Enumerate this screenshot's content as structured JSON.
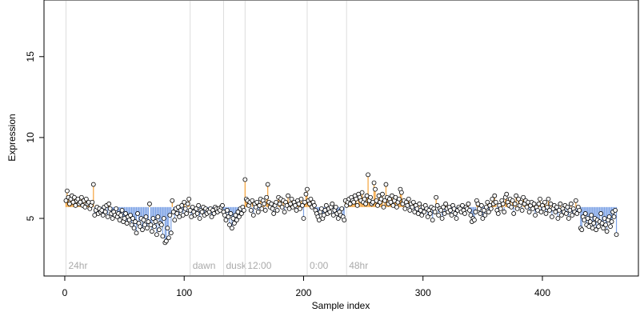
{
  "chart_data": {
    "type": "index-scatter",
    "x_label": "Sample index",
    "y_label": "Expression",
    "xlim": [
      -17.4,
      480.4
    ],
    "ylim": [
      1.44,
      18.5
    ],
    "xticks": [
      0,
      100,
      200,
      300,
      400
    ],
    "yticks": [
      5,
      10,
      15
    ],
    "reference": 5.7,
    "above_color": "#f5a33a",
    "below_color": "#7fa4e6",
    "point_fill": "#ffffff",
    "point_stroke": "#000000",
    "marker_color": "#dddddd",
    "markers": [
      {
        "x": 1,
        "label": "24hr"
      },
      {
        "x": 105,
        "label": "dawn"
      },
      {
        "x": 133,
        "label": "dusk"
      },
      {
        "x": 151,
        "label": "12:00"
      },
      {
        "x": 203,
        "label": "0:00"
      },
      {
        "x": 236,
        "label": "48hr"
      }
    ],
    "x": [
      1,
      2,
      3,
      4,
      5,
      6,
      7,
      8,
      9,
      10,
      11,
      12,
      13,
      14,
      15,
      16,
      17,
      18,
      19,
      20,
      21,
      22,
      23,
      24,
      25,
      26,
      27,
      28,
      29,
      30,
      31,
      32,
      33,
      34,
      35,
      36,
      37,
      38,
      39,
      40,
      41,
      42,
      43,
      44,
      45,
      46,
      47,
      48,
      49,
      50,
      51,
      52,
      53,
      54,
      55,
      56,
      57,
      58,
      59,
      60,
      61,
      62,
      63,
      64,
      65,
      66,
      67,
      68,
      69,
      70,
      71,
      72,
      73,
      74,
      75,
      76,
      77,
      78,
      79,
      80,
      81,
      82,
      83,
      84,
      85,
      86,
      87,
      88,
      89,
      90,
      91,
      92,
      93,
      94,
      95,
      96,
      97,
      98,
      99,
      100,
      101,
      102,
      103,
      104,
      105,
      106,
      107,
      108,
      109,
      110,
      111,
      112,
      113,
      114,
      115,
      116,
      117,
      118,
      119,
      120,
      121,
      122,
      123,
      124,
      125,
      126,
      127,
      128,
      129,
      130,
      131,
      132,
      133,
      134,
      135,
      136,
      137,
      138,
      139,
      140,
      141,
      142,
      143,
      144,
      145,
      146,
      147,
      148,
      149,
      150,
      151,
      152,
      153,
      154,
      155,
      156,
      157,
      158,
      159,
      160,
      161,
      162,
      163,
      164,
      165,
      166,
      167,
      168,
      169,
      170,
      171,
      172,
      173,
      174,
      175,
      176,
      177,
      178,
      179,
      180,
      181,
      182,
      183,
      184,
      185,
      186,
      187,
      188,
      189,
      190,
      191,
      192,
      193,
      194,
      195,
      196,
      197,
      198,
      199,
      200,
      201,
      202,
      203,
      204,
      205,
      206,
      207,
      208,
      209,
      210,
      211,
      212,
      213,
      214,
      215,
      216,
      217,
      218,
      219,
      220,
      221,
      222,
      223,
      224,
      225,
      226,
      227,
      228,
      229,
      230,
      231,
      232,
      233,
      234,
      235,
      236,
      237,
      238,
      239,
      240,
      241,
      242,
      243,
      244,
      245,
      246,
      247,
      248,
      249,
      250,
      251,
      252,
      253,
      254,
      255,
      256,
      257,
      258,
      259,
      260,
      261,
      262,
      263,
      264,
      265,
      266,
      267,
      268,
      269,
      270,
      271,
      272,
      273,
      274,
      275,
      276,
      277,
      278,
      279,
      280,
      281,
      282,
      283,
      284,
      285,
      286,
      287,
      288,
      289,
      290,
      291,
      292,
      293,
      294,
      295,
      296,
      297,
      298,
      299,
      300,
      301,
      302,
      303,
      304,
      305,
      306,
      307,
      308,
      309,
      310,
      311,
      312,
      313,
      314,
      315,
      316,
      317,
      318,
      319,
      320,
      321,
      322,
      323,
      324,
      325,
      326,
      327,
      328,
      329,
      330,
      331,
      332,
      333,
      334,
      335,
      336,
      337,
      338,
      339,
      340,
      341,
      342,
      343,
      344,
      345,
      346,
      347,
      348,
      349,
      350,
      351,
      352,
      353,
      354,
      355,
      356,
      357,
      358,
      359,
      360,
      361,
      362,
      363,
      364,
      365,
      366,
      367,
      368,
      369,
      370,
      371,
      372,
      373,
      374,
      375,
      376,
      377,
      378,
      379,
      380,
      381,
      382,
      383,
      384,
      385,
      386,
      387,
      388,
      389,
      390,
      391,
      392,
      393,
      394,
      395,
      396,
      397,
      398,
      399,
      400,
      401,
      402,
      403,
      404,
      405,
      406,
      407,
      408,
      409,
      410,
      411,
      412,
      413,
      414,
      415,
      416,
      417,
      418,
      419,
      420,
      421,
      422,
      423,
      424,
      425,
      426,
      427,
      428,
      429,
      430,
      431,
      432,
      433,
      434,
      435,
      436,
      437,
      438,
      439,
      440,
      441,
      442,
      443,
      444,
      445,
      446,
      447,
      448,
      449,
      450,
      451,
      452,
      453,
      454,
      455,
      456,
      457,
      458,
      459,
      460,
      461,
      462
    ],
    "values": [
      6.1,
      6.7,
      6.3,
      5.9,
      6.2,
      6.4,
      6.0,
      6.3,
      5.8,
      6.1,
      6.2,
      5.9,
      6.0,
      6.3,
      5.8,
      6.1,
      5.7,
      6.2,
      5.9,
      6.0,
      5.6,
      5.8,
      6.0,
      7.1,
      5.2,
      5.5,
      5.7,
      5.3,
      5.6,
      5.4,
      5.5,
      5.2,
      5.7,
      5.4,
      5.8,
      5.1,
      5.9,
      5.6,
      5.3,
      5.0,
      5.4,
      5.2,
      5.6,
      5.1,
      5.3,
      4.9,
      5.2,
      5.5,
      4.8,
      5.0,
      5.3,
      4.7,
      5.1,
      4.9,
      5.2,
      4.6,
      5.0,
      4.4,
      4.8,
      4.1,
      5.3,
      4.7,
      4.5,
      5.0,
      4.3,
      4.9,
      4.6,
      5.1,
      4.4,
      4.8,
      5.9,
      4.6,
      4.2,
      5.0,
      4.5,
      4.8,
      4.0,
      5.1,
      4.3,
      4.7,
      4.6,
      3.9,
      5.0,
      3.5,
      3.6,
      4.4,
      3.8,
      5.2,
      4.1,
      6.1,
      5.4,
      4.9,
      5.6,
      5.3,
      5.7,
      5.1,
      5.5,
      5.8,
      5.2,
      6.0,
      5.6,
      5.3,
      5.9,
      6.2,
      5.5,
      5.1,
      5.7,
      5.4,
      5.2,
      5.6,
      5.3,
      5.8,
      5.0,
      5.5,
      5.4,
      5.7,
      5.2,
      5.6,
      5.3,
      5.5,
      5.4,
      5.6,
      5.1,
      5.5,
      5.3,
      5.7,
      5.6,
      5.4,
      5.6,
      5.5,
      5.7,
      5.8,
      5.4,
      5.2,
      4.9,
      5.5,
      5.1,
      4.6,
      5.3,
      4.4,
      5.0,
      4.7,
      5.2,
      4.9,
      5.4,
      5.1,
      5.6,
      5.3,
      5.7,
      5.5,
      7.4,
      6.2,
      6.1,
      5.8,
      6.0,
      5.5,
      6.1,
      5.2,
      5.9,
      5.7,
      6.0,
      5.4,
      5.8,
      6.2,
      5.6,
      6.1,
      5.9,
      5.5,
      6.3,
      7.1,
      6.0,
      5.7,
      5.9,
      5.6,
      5.3,
      5.8,
      6.0,
      5.5,
      6.3,
      5.9,
      6.2,
      5.7,
      6.1,
      5.4,
      6.0,
      5.8,
      6.4,
      5.6,
      5.9,
      6.2,
      5.7,
      6.0,
      5.8,
      5.5,
      6.1,
      5.9,
      5.6,
      6.2,
      5.8,
      5.0,
      6.0,
      6.5,
      6.8,
      6.1,
      5.9,
      6.2,
      5.7,
      6.0,
      5.8,
      5.5,
      5.3,
      5.1,
      4.9,
      5.4,
      5.6,
      5.0,
      5.2,
      5.5,
      5.8,
      5.3,
      5.6,
      5.4,
      5.7,
      5.9,
      5.2,
      5.5,
      5.7,
      5.3,
      5.0,
      5.4,
      5.2,
      5.6,
      5.1,
      4.9,
      6.1,
      5.8,
      6.0,
      6.2,
      5.9,
      6.3,
      6.1,
      6.0,
      6.4,
      6.2,
      5.8,
      6.5,
      6.3,
      6.1,
      6.6,
      6.0,
      6.2,
      5.9,
      6.4,
      7.7,
      6.1,
      6.3,
      5.9,
      6.0,
      7.2,
      6.8,
      6.1,
      5.8,
      6.4,
      6.0,
      6.2,
      6.5,
      5.7,
      6.1,
      7.1,
      6.3,
      5.9,
      6.2,
      6.0,
      6.4,
      5.8,
      6.1,
      6.3,
      5.7,
      6.0,
      6.2,
      6.8,
      6.6,
      5.9,
      6.1,
      5.6,
      6.0,
      5.8,
      6.2,
      5.5,
      5.9,
      5.7,
      6.0,
      5.4,
      5.8,
      5.6,
      5.3,
      5.9,
      5.5,
      5.2,
      5.7,
      5.4,
      5.8,
      5.6,
      5.1,
      5.5,
      5.3,
      5.7,
      4.9,
      5.6,
      5.4,
      6.3,
      5.8,
      5.2,
      5.6,
      5.5,
      5.0,
      5.7,
      5.3,
      5.9,
      5.6,
      5.4,
      5.7,
      5.5,
      5.2,
      5.8,
      5.6,
      5.3,
      5.0,
      5.5,
      5.7,
      5.6,
      5.4,
      5.8,
      5.5,
      5.3,
      5.7,
      5.6,
      5.9,
      5.5,
      5.2,
      4.8,
      5.0,
      4.9,
      5.4,
      6.1,
      5.9,
      5.6,
      5.3,
      5.8,
      5.0,
      5.5,
      5.2,
      5.7,
      6.0,
      5.4,
      5.8,
      5.6,
      6.2,
      5.9,
      6.4,
      6.0,
      5.5,
      5.3,
      5.8,
      5.6,
      6.1,
      5.9,
      5.4,
      6.3,
      6.5,
      6.0,
      5.8,
      6.2,
      5.7,
      6.1,
      5.3,
      5.9,
      6.4,
      5.6,
      6.2,
      5.8,
      6.0,
      5.5,
      6.3,
      5.9,
      6.1,
      5.7,
      6.0,
      5.4,
      5.8,
      6.0,
      5.6,
      5.9,
      5.2,
      5.7,
      5.5,
      5.9,
      6.2,
      5.4,
      5.8,
      5.6,
      6.0,
      5.3,
      5.7,
      6.2,
      5.5,
      5.9,
      5.1,
      5.6,
      5.8,
      5.4,
      5.7,
      5.0,
      5.5,
      5.9,
      5.2,
      5.6,
      5.4,
      5.8,
      5.3,
      5.7,
      5.0,
      5.5,
      5.9,
      5.2,
      5.6,
      5.4,
      6.1,
      5.3,
      5.7,
      5.5,
      4.4,
      4.3,
      5.1,
      4.9,
      5.3,
      4.6,
      5.0,
      4.5,
      4.8,
      5.2,
      4.4,
      4.7,
      5.0,
      4.3,
      4.9,
      4.5,
      4.8,
      5.3,
      4.7,
      4.4,
      5.0,
      4.6,
      4.2,
      4.9,
      5.1,
      4.5,
      4.8,
      5.4,
      5.1,
      5.5,
      4.0
    ]
  }
}
